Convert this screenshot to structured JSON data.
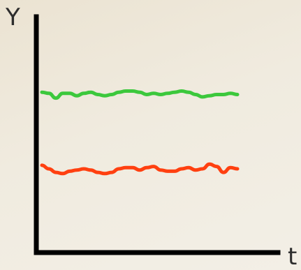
{
  "chart_data": {
    "type": "line",
    "title": "",
    "xlabel": "t",
    "ylabel": "Y",
    "grid": false,
    "legend": "none",
    "xlim": [
      0,
      28
    ],
    "ylim": [
      0,
      20
    ],
    "x": [
      0,
      1,
      2,
      3,
      4,
      5,
      6,
      7,
      8,
      9,
      10,
      11,
      12,
      13,
      14,
      15,
      16,
      17,
      18,
      19,
      20,
      21,
      22,
      23,
      24,
      25,
      26,
      27,
      28
    ],
    "series": [
      {
        "color": "#3cc83c",
        "values": [
          13.6,
          13.5,
          13.1,
          13.5,
          13.5,
          13.3,
          13.5,
          13.6,
          13.4,
          13.3,
          13.4,
          13.6,
          13.7,
          13.7,
          13.6,
          13.4,
          13.5,
          13.4,
          13.5,
          13.6,
          13.7,
          13.6,
          13.4,
          13.2,
          13.3,
          13.4,
          13.4,
          13.5,
          13.4
        ]
      },
      {
        "color": "#ff4010",
        "values": [
          7.4,
          7.1,
          6.8,
          6.7,
          6.9,
          7.0,
          7.1,
          7.0,
          6.8,
          6.7,
          6.8,
          7.1,
          7.2,
          7.2,
          7.0,
          7.2,
          7.3,
          7.0,
          6.9,
          6.9,
          7.1,
          7.2,
          7.0,
          7.1,
          7.5,
          7.3,
          6.8,
          7.2,
          7.1
        ]
      }
    ]
  }
}
